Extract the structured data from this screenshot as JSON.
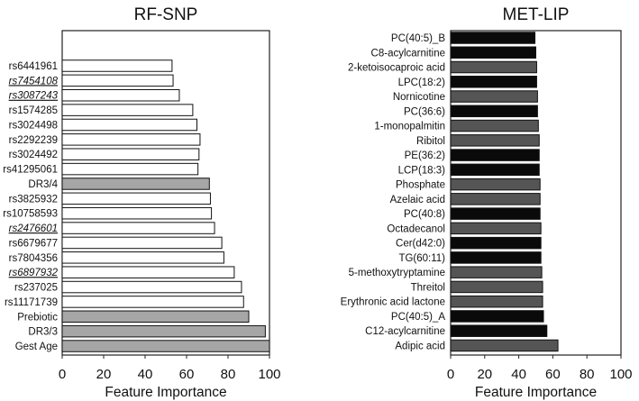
{
  "chart_data": [
    {
      "type": "bar",
      "orientation": "horizontal",
      "title": "RF-SNP",
      "xlabel": "Feature Importance",
      "ylabel": "",
      "xlim": [
        0,
        100
      ],
      "xticks": [
        0,
        20,
        40,
        60,
        80,
        100
      ],
      "grid": false,
      "categories": [
        "rs6441961",
        "rs7454108",
        "rs3087243",
        "rs1574285",
        "rs3024498",
        "rs2292239",
        "rs3024492",
        "rs41295061",
        "DR3/4",
        "rs3825932",
        "rs10758593",
        "rs2476601",
        "rs6679677",
        "rs7804356",
        "rs6897932",
        "rs237025",
        "rs11171739",
        "Prebiotic",
        "DR3/3",
        "Gest Age"
      ],
      "values": [
        53,
        53.5,
        56.5,
        63,
        65,
        66.5,
        66,
        65.5,
        71,
        71.5,
        72,
        73.5,
        77,
        78,
        83,
        86.5,
        87.5,
        90,
        98,
        100
      ],
      "styles": [
        "white",
        "white",
        "white",
        "white",
        "white",
        "white",
        "white",
        "white",
        "gray",
        "white",
        "white",
        "white",
        "white",
        "white",
        "white",
        "white",
        "white",
        "gray",
        "gray",
        "gray"
      ],
      "underlined": [
        "rs7454108",
        "rs3087243",
        "rs2476601",
        "rs6897932"
      ]
    },
    {
      "type": "bar",
      "orientation": "horizontal",
      "title": "MET-LIP",
      "xlabel": "Feature Importance",
      "ylabel": "",
      "xlim": [
        0,
        100
      ],
      "xticks": [
        0,
        20,
        40,
        60,
        80,
        100
      ],
      "grid": false,
      "categories": [
        "PC(40:5)_B",
        "C8-acylcarnitine",
        "2-ketoisocaproic acid",
        "LPC(18:2)",
        "Nornicotine",
        "PC(36:6)",
        "1-monopalmitin",
        "Ribitol",
        "PE(36:2)",
        "LCP(18:3)",
        "Phosphate",
        "Azelaic acid",
        "PC(40:8)",
        "Octadecanol",
        "Cer(d42:0)",
        "TG(60:11)",
        "5-methoxytryptamine",
        "Threitol",
        "Erythronic acid lactone",
        "PC(40:5)_A",
        "C12-acylcarnitine",
        "Adipic acid"
      ],
      "values": [
        49.5,
        50,
        50.5,
        50.5,
        51,
        51,
        51.5,
        52,
        52,
        52,
        52.5,
        52.5,
        52.5,
        53,
        53,
        53,
        53.5,
        54,
        54,
        54.5,
        56.5,
        63
      ],
      "styles": [
        "black",
        "black",
        "gray",
        "black",
        "gray",
        "black",
        "gray",
        "gray",
        "black",
        "black",
        "gray",
        "gray",
        "black",
        "gray",
        "black",
        "black",
        "gray",
        "gray",
        "gray",
        "black",
        "black",
        "gray"
      ],
      "underlined": []
    }
  ],
  "colors": {
    "white": "#ffffff",
    "gray": "#a6a6a6",
    "dark_gray": "#555555",
    "black": "#0a0a0a",
    "axis": "#222222"
  }
}
